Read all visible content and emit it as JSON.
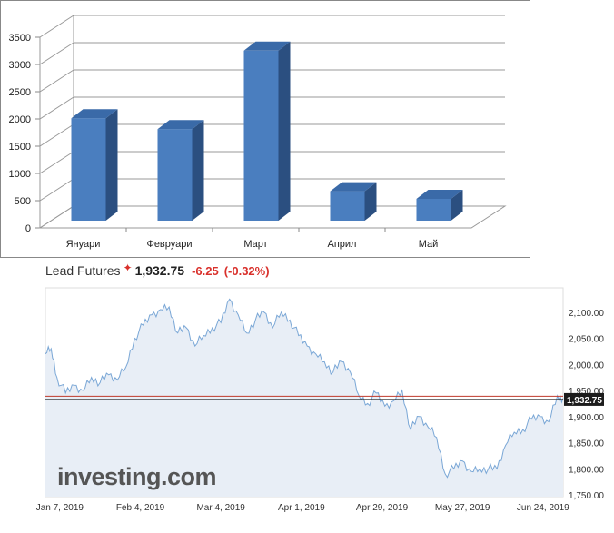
{
  "chart_data": [
    {
      "type": "bar",
      "categories": [
        "Януари",
        "Февруари",
        "Март",
        "Април",
        "Май"
      ],
      "values": [
        2080,
        1880,
        3320,
        740,
        600
      ],
      "title": "",
      "xlabel": "",
      "ylabel": "",
      "ylim": [
        0,
        3500
      ],
      "yticks": [
        0,
        500,
        1000,
        1500,
        2000,
        2500,
        3000,
        3500
      ],
      "grid": true,
      "style": "3d",
      "colors": {
        "bar": "#4a7ebf",
        "bar_side": "#2b4f80",
        "bar_top": "#3a6aa8"
      }
    },
    {
      "type": "area",
      "title": "",
      "instrument": "Lead Futures",
      "price": "1,932.75",
      "change": "-6.25",
      "change_pct": "(-0.32%)",
      "ylim": [
        1750,
        2150
      ],
      "yticks": [
        "1,750.00",
        "1,800.00",
        "1,850.00",
        "1,900.00",
        "1,950.00",
        "2,000.00",
        "2,050.00",
        "2,100.00"
      ],
      "ytick_values": [
        1750,
        1800,
        1850,
        1900,
        1950,
        2000,
        2050,
        2100
      ],
      "xticks": [
        "Jan 7, 2019",
        "Feb 4, 2019",
        "Mar 4, 2019",
        "Apr 1, 2019",
        "Apr 29, 2019",
        "May 27, 2019",
        "Jun 24, 2019"
      ],
      "x_start": "Jan 2, 2019",
      "x_end": "Jul 1, 2019",
      "xtick_dates": [
        "2019-01-07",
        "2019-02-04",
        "2019-03-04",
        "2019-04-01",
        "2019-04-29",
        "2019-05-27",
        "2019-06-24"
      ],
      "last_value": 1932.75,
      "reference_line": 1939,
      "last_label": "1,932.75",
      "watermark": "investing.com",
      "series": [
        {
          "dates": [
            "2019-01-02",
            "2019-01-04",
            "2019-01-06",
            "2019-01-09",
            "2019-01-12",
            "2019-01-15",
            "2019-01-18",
            "2019-01-21",
            "2019-01-24",
            "2019-01-27",
            "2019-01-30",
            "2019-02-02",
            "2019-02-05",
            "2019-02-08",
            "2019-02-11",
            "2019-02-14",
            "2019-02-17",
            "2019-02-20",
            "2019-02-23",
            "2019-02-26",
            "2019-03-01",
            "2019-03-04",
            "2019-03-07",
            "2019-03-10",
            "2019-03-13",
            "2019-03-16",
            "2019-03-19",
            "2019-03-22",
            "2019-03-25",
            "2019-03-28",
            "2019-03-31",
            "2019-04-03",
            "2019-04-06",
            "2019-04-09",
            "2019-04-12",
            "2019-04-15",
            "2019-04-18",
            "2019-04-21",
            "2019-04-24",
            "2019-04-27",
            "2019-04-30",
            "2019-05-03",
            "2019-05-06",
            "2019-05-09",
            "2019-05-12",
            "2019-05-15",
            "2019-05-18",
            "2019-05-21",
            "2019-05-24",
            "2019-05-27",
            "2019-05-30",
            "2019-06-02",
            "2019-06-05",
            "2019-06-08",
            "2019-06-11",
            "2019-06-14",
            "2019-06-17",
            "2019-06-20",
            "2019-06-23",
            "2019-06-26",
            "2019-06-29",
            "2019-07-01"
          ],
          "values": [
            2020,
            2030,
            1975,
            1945,
            1960,
            1950,
            1975,
            1965,
            1980,
            1970,
            1995,
            2050,
            2075,
            2095,
            2105,
            2110,
            2060,
            2070,
            2035,
            2055,
            2070,
            2080,
            2125,
            2095,
            2060,
            2085,
            2100,
            2070,
            2100,
            2085,
            2055,
            2035,
            2020,
            2005,
            1985,
            2005,
            1985,
            1940,
            1925,
            1945,
            1920,
            1930,
            1950,
            1875,
            1900,
            1880,
            1860,
            1790,
            1800,
            1815,
            1795,
            1800,
            1800,
            1800,
            1845,
            1870,
            1875,
            1895,
            1900,
            1890,
            1940,
            1935
          ]
        }
      ],
      "colors": {
        "line": "#7aa7d6",
        "area": "#e8eef6",
        "ref_line": "#c0392b",
        "last_line": "#222222",
        "badge": "#1c1c1c"
      }
    }
  ]
}
